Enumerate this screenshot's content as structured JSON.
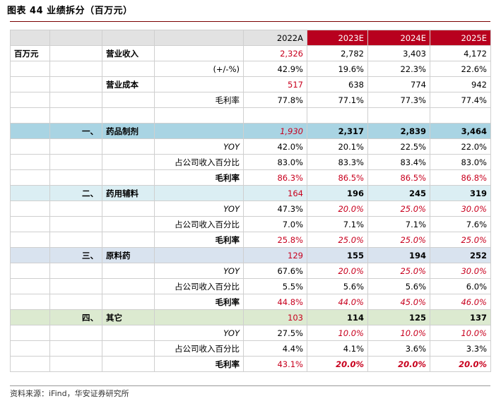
{
  "title": "图表 44 业绩拆分（百万元）",
  "header": {
    "years": [
      "2022A",
      "2023E",
      "2024E",
      "2025E"
    ]
  },
  "rows": [
    {
      "c0": "百万元",
      "c1": "",
      "c2": "营业收入",
      "c3": "",
      "v": [
        "2,326",
        "2,782",
        "3,403",
        "4,172"
      ]
    },
    {
      "c0": "",
      "c1": "",
      "c2": "",
      "c3": "(+/-%)",
      "v": [
        "42.9%",
        "19.6%",
        "22.3%",
        "22.6%"
      ]
    },
    {
      "c0": "",
      "c1": "",
      "c2": "营业成本",
      "c3": "",
      "v": [
        "517",
        "638",
        "774",
        "942"
      ]
    },
    {
      "c0": "",
      "c1": "",
      "c2": "",
      "c3": "毛利率",
      "v": [
        "77.8%",
        "77.1%",
        "77.3%",
        "77.4%"
      ]
    },
    {
      "c0": "",
      "c1": "",
      "c2": "",
      "c3": "",
      "v": [
        "",
        "",
        "",
        ""
      ]
    },
    {
      "c0": "",
      "c1": "一、",
      "c2": "药品制剂",
      "c3": "",
      "v": [
        "1,930",
        "2,317",
        "2,839",
        "3,464"
      ]
    },
    {
      "c0": "",
      "c1": "",
      "c2": "",
      "c3": "YOY",
      "v": [
        "42.0%",
        "20.1%",
        "22.5%",
        "22.0%"
      ]
    },
    {
      "c0": "",
      "c1": "",
      "c2": "",
      "c3": "占公司收入百分比",
      "v": [
        "83.0%",
        "83.3%",
        "83.4%",
        "83.0%"
      ]
    },
    {
      "c0": "",
      "c1": "",
      "c2": "",
      "c3": "毛利率",
      "v": [
        "86.3%",
        "86.5%",
        "86.5%",
        "86.8%"
      ]
    },
    {
      "c0": "",
      "c1": "二、",
      "c2": "药用辅料",
      "c3": "",
      "v": [
        "164",
        "196",
        "245",
        "319"
      ]
    },
    {
      "c0": "",
      "c1": "",
      "c2": "",
      "c3": "YOY",
      "v": [
        "47.3%",
        "20.0%",
        "25.0%",
        "30.0%"
      ]
    },
    {
      "c0": "",
      "c1": "",
      "c2": "",
      "c3": "占公司收入百分比",
      "v": [
        "7.0%",
        "7.1%",
        "7.1%",
        "7.6%"
      ]
    },
    {
      "c0": "",
      "c1": "",
      "c2": "",
      "c3": "毛利率",
      "v": [
        "25.8%",
        "25.0%",
        "25.0%",
        "25.0%"
      ]
    },
    {
      "c0": "",
      "c1": "三、",
      "c2": "原料药",
      "c3": "",
      "v": [
        "129",
        "155",
        "194",
        "252"
      ]
    },
    {
      "c0": "",
      "c1": "",
      "c2": "",
      "c3": "YOY",
      "v": [
        "67.6%",
        "20.0%",
        "25.0%",
        "30.0%"
      ]
    },
    {
      "c0": "",
      "c1": "",
      "c2": "",
      "c3": "占公司收入百分比",
      "v": [
        "5.5%",
        "5.6%",
        "5.6%",
        "6.0%"
      ]
    },
    {
      "c0": "",
      "c1": "",
      "c2": "",
      "c3": "毛利率",
      "v": [
        "44.8%",
        "44.0%",
        "45.0%",
        "46.0%"
      ]
    },
    {
      "c0": "",
      "c1": "四、",
      "c2": "其它",
      "c3": "",
      "v": [
        "103",
        "114",
        "125",
        "137"
      ]
    },
    {
      "c0": "",
      "c1": "",
      "c2": "",
      "c3": "YOY",
      "v": [
        "27.5%",
        "10.0%",
        "10.0%",
        "10.0%"
      ]
    },
    {
      "c0": "",
      "c1": "",
      "c2": "",
      "c3": "占公司收入百分比",
      "v": [
        "4.4%",
        "4.1%",
        "3.6%",
        "3.3%"
      ]
    },
    {
      "c0": "",
      "c1": "",
      "c2": "",
      "c3": "毛利率",
      "v": [
        "43.1%",
        "20.0%",
        "20.0%",
        "20.0%"
      ]
    }
  ],
  "source": "资料来源：iFind，华安证券研究所",
  "colors": {
    "estimate_header": "#b8001e",
    "highlight_text": "#c8001e",
    "segment1": "#a9d4e3",
    "segment2": "#dbeef3",
    "segment3": "#d9e3ef",
    "segment4": "#dcead0"
  }
}
